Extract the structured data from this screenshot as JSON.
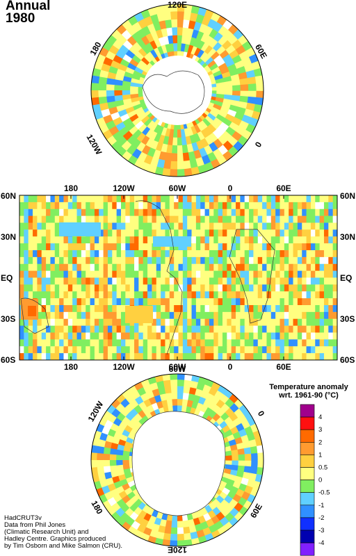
{
  "title": {
    "line1": "Annual",
    "line2": "1980"
  },
  "north_pole_map": {
    "labels": [
      "120E",
      "60E",
      "0",
      "120W",
      "180"
    ]
  },
  "equatorial_map": {
    "lon_labels": [
      "180",
      "120W",
      "60W",
      "0",
      "60E"
    ],
    "lat_labels": [
      "60N",
      "30N",
      "EQ",
      "30S",
      "60S"
    ]
  },
  "south_pole_map": {
    "labels": [
      "60W",
      "0",
      "60E",
      "120E",
      "180",
      "120W"
    ]
  },
  "legend": {
    "title_line1": "Temperature anomaly",
    "title_line2": "wrt. 1961-90  (°C)",
    "ticks": [
      "4",
      "3",
      "2",
      "1",
      "0.5",
      "0",
      "-0.5",
      "-1",
      "-2",
      "-3",
      "-4"
    ],
    "colors": [
      "#a0008c",
      "#ff1010",
      "#ff6a00",
      "#ff9b30",
      "#ffd040",
      "#ffff80",
      "#80ee60",
      "#60d0ff",
      "#3090ff",
      "#1030ff",
      "#0000b0",
      "#8020ff"
    ]
  },
  "credits": {
    "line1": "HadCRUT3v",
    "line2": "Data from Phil Jones",
    "line3": "(Climatic Research Unit) and",
    "line4": "Hadley Centre.  Graphics produced",
    "line5": "by Tim Osborn and Mike Salmon (CRU)."
  }
}
